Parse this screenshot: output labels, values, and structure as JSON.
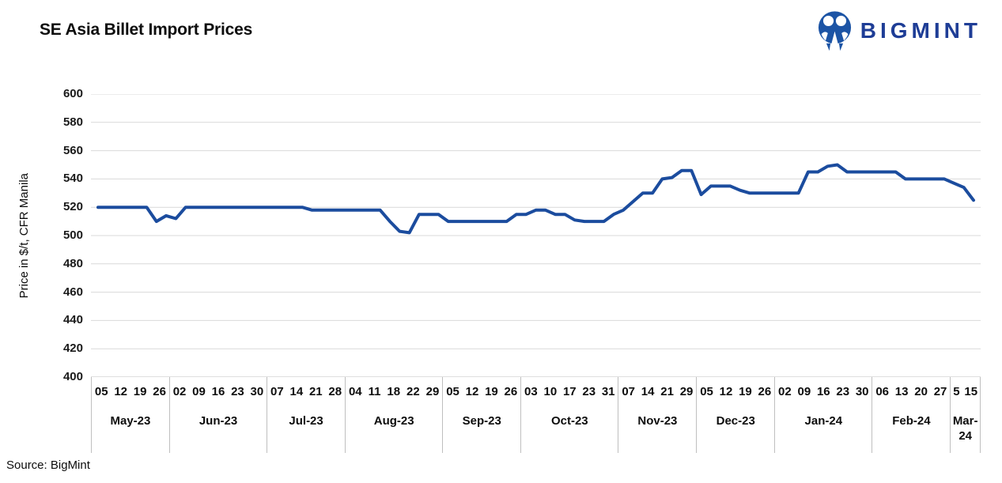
{
  "header": {
    "title": "SE Asia Billet Import Prices",
    "brand": "BIGMINT"
  },
  "chart_data": {
    "type": "line",
    "title": "SE Asia Billet Import Prices",
    "xlabel": "",
    "ylabel": "Price in $/t, CFR Manila",
    "ylim": [
      400,
      600
    ],
    "ytick_step": 20,
    "yticks": [
      400,
      420,
      440,
      460,
      480,
      500,
      520,
      540,
      560,
      580,
      600
    ],
    "grid": "horizontal",
    "legend_position": "none",
    "line_color": "#1B4C9E",
    "gridline_color": "#D9D9D9",
    "axis_line_color": "#BFBFBF",
    "months": [
      {
        "label": "May-23",
        "days": [
          "05",
          "12",
          "19",
          "26"
        ],
        "points": 8
      },
      {
        "label": "Jun-23",
        "days": [
          "02",
          "09",
          "16",
          "23",
          "30"
        ],
        "points": 10
      },
      {
        "label": "Jul-23",
        "days": [
          "07",
          "14",
          "21",
          "28"
        ],
        "points": 8
      },
      {
        "label": "Aug-23",
        "days": [
          "04",
          "11",
          "18",
          "22",
          "29"
        ],
        "points": 10
      },
      {
        "label": "Sep-23",
        "days": [
          "05",
          "12",
          "19",
          "26"
        ],
        "points": 8
      },
      {
        "label": "Oct-23",
        "days": [
          "03",
          "10",
          "17",
          "23",
          "31"
        ],
        "points": 10
      },
      {
        "label": "Nov-23",
        "days": [
          "07",
          "14",
          "21",
          "29"
        ],
        "points": 8
      },
      {
        "label": "Dec-23",
        "days": [
          "05",
          "12",
          "19",
          "26"
        ],
        "points": 8
      },
      {
        "label": "Jan-24",
        "days": [
          "02",
          "09",
          "16",
          "23",
          "30"
        ],
        "points": 10
      },
      {
        "label": "Feb-24",
        "days": [
          "06",
          "13",
          "20",
          "27"
        ],
        "points": 8
      },
      {
        "label": "Mar-24",
        "days": [
          "5",
          "15"
        ],
        "points": 3
      }
    ],
    "series": [
      {
        "name": "SE Asia billet import price, $/t CFR Manila",
        "values": [
          520,
          520,
          520,
          520,
          520,
          520,
          510,
          514,
          512,
          520,
          520,
          520,
          520,
          520,
          520,
          520,
          520,
          520,
          520,
          520,
          520,
          520,
          518,
          518,
          518,
          518,
          518,
          518,
          518,
          518,
          510,
          503,
          502,
          515,
          515,
          515,
          510,
          510,
          510,
          510,
          510,
          510,
          510,
          515,
          515,
          518,
          518,
          515,
          515,
          511,
          510,
          510,
          510,
          515,
          518,
          524,
          530,
          530,
          540,
          541,
          546,
          546,
          529,
          535,
          535,
          535,
          532,
          530,
          530,
          530,
          530,
          530,
          530,
          545,
          545,
          549,
          550,
          545,
          545,
          545,
          545,
          545,
          545,
          540,
          540,
          540,
          540,
          540,
          537,
          534,
          525
        ]
      }
    ]
  },
  "footer": {
    "source": "Source: BigMint"
  }
}
